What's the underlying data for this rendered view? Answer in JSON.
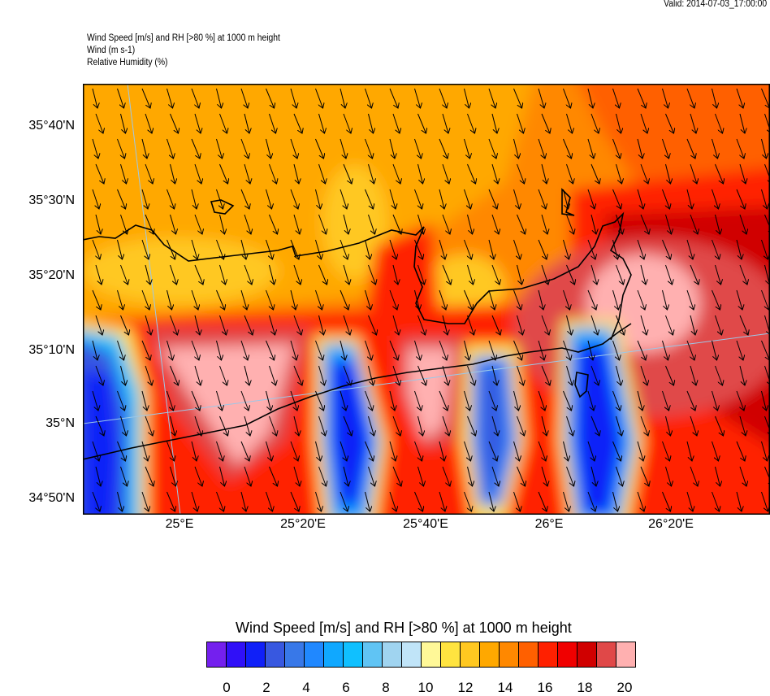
{
  "header": {
    "valid_time": "Valid: 2014-07-03_17:00:00",
    "title_line1": "Wind Speed [m/s] and RH [>80 %] at 1000 m height",
    "title_line2": "Wind   (m s-1)",
    "title_line3": "Relative Humidity   (%)"
  },
  "map": {
    "lat_labels": [
      "35°40'N",
      "35°30'N",
      "35°20'N",
      "35°10'N",
      "35°N",
      "34°50'N"
    ],
    "lon_labels": [
      "25°E",
      "25°20'E",
      "25°40'E",
      "26°E",
      "26°20'E"
    ],
    "wind_direction": "north-to-south (arrows pointing down, slightly right)"
  },
  "colorbar": {
    "title": "Wind Speed [m/s] and RH [>80 %] at 1000 m height",
    "colors": [
      "#7420EE",
      "#3010F8",
      "#1020F8",
      "#3858E0",
      "#3878E8",
      "#2088FF",
      "#10A8FF",
      "#10C0FF",
      "#60C4F4",
      "#A0D4F0",
      "#C0E4F8",
      "#FFF898",
      "#FFE440",
      "#FFC820",
      "#FFA800",
      "#FF8800",
      "#FF6000",
      "#FF2000",
      "#F00000",
      "#D00000",
      "#E04848",
      "#FFB0B0"
    ],
    "labels": [
      "0",
      "2",
      "4",
      "6",
      "8",
      "10",
      "12",
      "14",
      "16",
      "18",
      "20"
    ]
  }
}
